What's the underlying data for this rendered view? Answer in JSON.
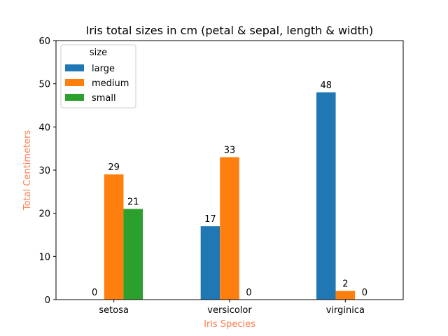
{
  "chart_data": {
    "type": "bar",
    "title": "Iris total sizes in cm (petal & sepal, length & width)",
    "xlabel": "Iris Species",
    "ylabel": "Total Centimeters",
    "label_color": "#ff7f50",
    "categories": [
      "setosa",
      "versicolor",
      "virginica"
    ],
    "series": [
      {
        "name": "large",
        "color": "#1f77b4",
        "values": [
          0,
          17,
          48
        ]
      },
      {
        "name": "medium",
        "color": "#ff7f0e",
        "values": [
          29,
          33,
          2
        ]
      },
      {
        "name": "small",
        "color": "#2ca02c",
        "values": [
          21,
          0,
          0
        ]
      }
    ],
    "ylim": [
      0,
      60
    ],
    "yticks": [
      0,
      10,
      20,
      30,
      40,
      50,
      60
    ],
    "legend_title": "size",
    "legend_position": "top-left",
    "grid": false
  }
}
